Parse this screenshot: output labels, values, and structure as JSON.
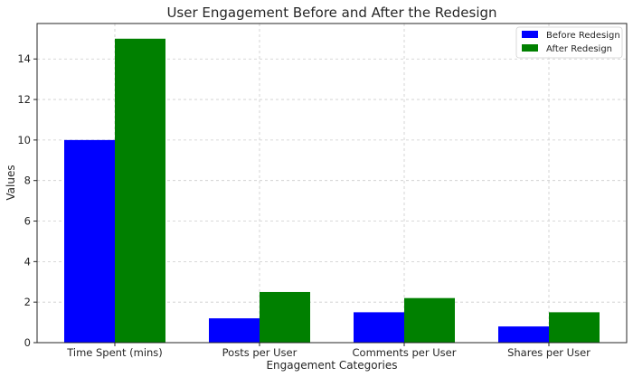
{
  "chart_data": {
    "type": "bar",
    "title": "User Engagement Before and After the Redesign",
    "xlabel": "Engagement Categories",
    "ylabel": "Values",
    "categories": [
      "Time Spent (mins)",
      "Posts per User",
      "Comments per User",
      "Shares per User"
    ],
    "series": [
      {
        "name": "Before Redesign",
        "color": "#0000ff",
        "values": [
          10,
          1.2,
          1.5,
          0.8
        ]
      },
      {
        "name": "After Redesign",
        "color": "#008000",
        "values": [
          15,
          2.5,
          2.2,
          1.5
        ]
      }
    ],
    "ylim": [
      0,
      15.75
    ],
    "yticks": [
      0,
      2,
      4,
      6,
      8,
      10,
      12,
      14
    ],
    "grid": true,
    "legend_position": "top-right"
  }
}
